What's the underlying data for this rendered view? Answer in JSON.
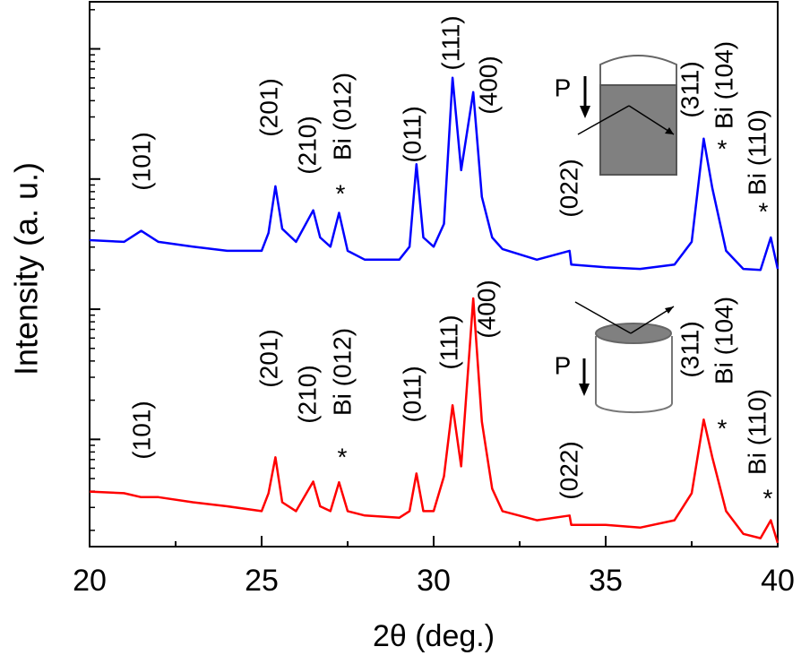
{
  "chart_data": {
    "type": "line",
    "xlabel": "2θ (deg.)",
    "ylabel": "Intensity (a. u.)",
    "xlim": [
      20,
      40
    ],
    "xticks": [
      20,
      25,
      30,
      35,
      40
    ],
    "ylim": [
      1.5,
      23000
    ],
    "yticks": [
      10,
      100,
      1000,
      10000
    ],
    "yscale": "log",
    "x": [
      20,
      21,
      21.5,
      22,
      23,
      24,
      25,
      25.2,
      25.4,
      25.6,
      26,
      26.5,
      26.7,
      27,
      27.25,
      27.5,
      28,
      29,
      29.3,
      29.5,
      29.7,
      30,
      30.3,
      30.55,
      30.8,
      31.15,
      31.4,
      31.7,
      32,
      33,
      33.95,
      34,
      35,
      36,
      37,
      37.5,
      37.85,
      38.1,
      38.5,
      39,
      39.5,
      39.8,
      40
    ],
    "series": [
      {
        "name": "top",
        "color": "#0000ff",
        "values": [
          339,
          329,
          400,
          329,
          302,
          281,
          281,
          386,
          880,
          415,
          329,
          575,
          356,
          302,
          550,
          281,
          240,
          240,
          302,
          1300,
          356,
          302,
          452,
          6000,
          1170,
          4650,
          730,
          356,
          290,
          240,
          281,
          220,
          210,
          204,
          220,
          329,
          2040,
          853,
          281,
          204,
          200,
          356,
          204
        ]
      },
      {
        "name": "bottom",
        "color": "#ff0000",
        "values": [
          3.97,
          3.86,
          3.6,
          3.6,
          3.29,
          3.06,
          2.81,
          3.86,
          7.28,
          3.29,
          2.81,
          4.74,
          3.06,
          2.81,
          4.68,
          2.81,
          2.6,
          2.5,
          2.81,
          5.47,
          2.81,
          2.81,
          5.2,
          18.3,
          6.21,
          121,
          13.7,
          4.18,
          2.81,
          2.39,
          2.6,
          2.2,
          2.2,
          2.1,
          2.39,
          3.86,
          14.2,
          7.28,
          2.81,
          1.88,
          1.74,
          2.39,
          1.6
        ]
      }
    ],
    "annotations": [
      "(101)",
      "(201)",
      "(210)",
      "Bi (012)",
      "*",
      "(011)",
      "(111)",
      "(400)",
      "(022)",
      "(311)",
      "Bi (104)",
      "*",
      "Bi (110)",
      "*",
      "P",
      "(101)",
      "(201)",
      "(210)",
      "Bi (012)",
      "*",
      "(011)",
      "(111)",
      "(400)",
      "(022)",
      "(311)",
      "Bi (104)",
      "*",
      "Bi (110)",
      "*",
      "P"
    ]
  }
}
